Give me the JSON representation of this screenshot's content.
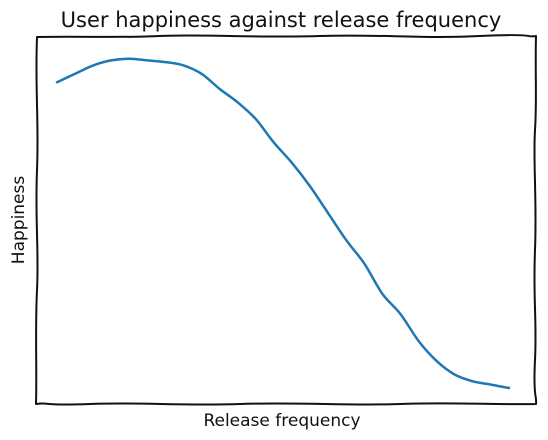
{
  "chart_data": {
    "type": "line",
    "title": "User happiness against release frequency",
    "xlabel": "Release frequency",
    "ylabel": "Happiness",
    "xlim": [
      0,
      1
    ],
    "ylim": [
      0,
      1
    ],
    "grid": false,
    "x_ticks_shown": false,
    "y_ticks_shown": false,
    "style": "hand-drawn",
    "series": [
      {
        "color": "#1f77b4",
        "x": [
          0.0,
          0.04,
          0.08,
          0.12,
          0.16,
          0.2,
          0.24,
          0.28,
          0.32,
          0.36,
          0.4,
          0.44,
          0.48,
          0.52,
          0.56,
          0.6,
          0.64,
          0.68,
          0.72,
          0.76,
          0.8,
          0.84,
          0.88,
          0.92,
          0.96,
          1.0
        ],
        "values": [
          0.91,
          0.935,
          0.96,
          0.975,
          0.98,
          0.975,
          0.97,
          0.96,
          0.935,
          0.89,
          0.85,
          0.8,
          0.73,
          0.67,
          0.6,
          0.52,
          0.44,
          0.37,
          0.28,
          0.22,
          0.14,
          0.08,
          0.04,
          0.02,
          0.01,
          0.0
        ]
      }
    ]
  }
}
